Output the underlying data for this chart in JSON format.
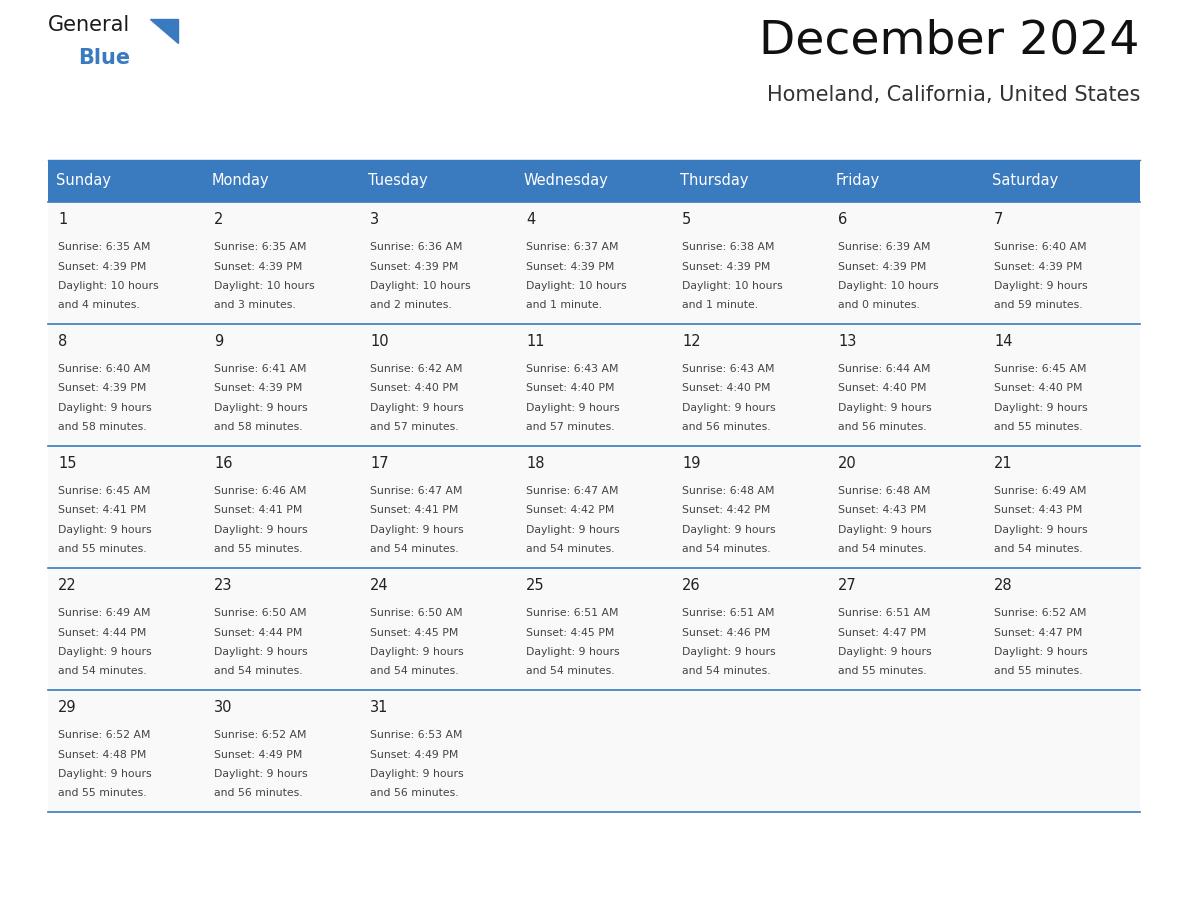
{
  "title": "December 2024",
  "subtitle": "Homeland, California, United States",
  "days_of_week": [
    "Sunday",
    "Monday",
    "Tuesday",
    "Wednesday",
    "Thursday",
    "Friday",
    "Saturday"
  ],
  "header_bg": "#3a7abf",
  "header_text_color": "#ffffff",
  "cell_bg": "#f9f9f9",
  "separator_color": "#3a7abf",
  "text_color": "#444444",
  "day_num_color": "#222222",
  "calendar_data": [
    [
      {
        "day": 1,
        "sunrise": "6:35 AM",
        "sunset": "4:39 PM",
        "daylight_line1": "Daylight: 10 hours",
        "daylight_line2": "and 4 minutes."
      },
      {
        "day": 2,
        "sunrise": "6:35 AM",
        "sunset": "4:39 PM",
        "daylight_line1": "Daylight: 10 hours",
        "daylight_line2": "and 3 minutes."
      },
      {
        "day": 3,
        "sunrise": "6:36 AM",
        "sunset": "4:39 PM",
        "daylight_line1": "Daylight: 10 hours",
        "daylight_line2": "and 2 minutes."
      },
      {
        "day": 4,
        "sunrise": "6:37 AM",
        "sunset": "4:39 PM",
        "daylight_line1": "Daylight: 10 hours",
        "daylight_line2": "and 1 minute."
      },
      {
        "day": 5,
        "sunrise": "6:38 AM",
        "sunset": "4:39 PM",
        "daylight_line1": "Daylight: 10 hours",
        "daylight_line2": "and 1 minute."
      },
      {
        "day": 6,
        "sunrise": "6:39 AM",
        "sunset": "4:39 PM",
        "daylight_line1": "Daylight: 10 hours",
        "daylight_line2": "and 0 minutes."
      },
      {
        "day": 7,
        "sunrise": "6:40 AM",
        "sunset": "4:39 PM",
        "daylight_line1": "Daylight: 9 hours",
        "daylight_line2": "and 59 minutes."
      }
    ],
    [
      {
        "day": 8,
        "sunrise": "6:40 AM",
        "sunset": "4:39 PM",
        "daylight_line1": "Daylight: 9 hours",
        "daylight_line2": "and 58 minutes."
      },
      {
        "day": 9,
        "sunrise": "6:41 AM",
        "sunset": "4:39 PM",
        "daylight_line1": "Daylight: 9 hours",
        "daylight_line2": "and 58 minutes."
      },
      {
        "day": 10,
        "sunrise": "6:42 AM",
        "sunset": "4:40 PM",
        "daylight_line1": "Daylight: 9 hours",
        "daylight_line2": "and 57 minutes."
      },
      {
        "day": 11,
        "sunrise": "6:43 AM",
        "sunset": "4:40 PM",
        "daylight_line1": "Daylight: 9 hours",
        "daylight_line2": "and 57 minutes."
      },
      {
        "day": 12,
        "sunrise": "6:43 AM",
        "sunset": "4:40 PM",
        "daylight_line1": "Daylight: 9 hours",
        "daylight_line2": "and 56 minutes."
      },
      {
        "day": 13,
        "sunrise": "6:44 AM",
        "sunset": "4:40 PM",
        "daylight_line1": "Daylight: 9 hours",
        "daylight_line2": "and 56 minutes."
      },
      {
        "day": 14,
        "sunrise": "6:45 AM",
        "sunset": "4:40 PM",
        "daylight_line1": "Daylight: 9 hours",
        "daylight_line2": "and 55 minutes."
      }
    ],
    [
      {
        "day": 15,
        "sunrise": "6:45 AM",
        "sunset": "4:41 PM",
        "daylight_line1": "Daylight: 9 hours",
        "daylight_line2": "and 55 minutes."
      },
      {
        "day": 16,
        "sunrise": "6:46 AM",
        "sunset": "4:41 PM",
        "daylight_line1": "Daylight: 9 hours",
        "daylight_line2": "and 55 minutes."
      },
      {
        "day": 17,
        "sunrise": "6:47 AM",
        "sunset": "4:41 PM",
        "daylight_line1": "Daylight: 9 hours",
        "daylight_line2": "and 54 minutes."
      },
      {
        "day": 18,
        "sunrise": "6:47 AM",
        "sunset": "4:42 PM",
        "daylight_line1": "Daylight: 9 hours",
        "daylight_line2": "and 54 minutes."
      },
      {
        "day": 19,
        "sunrise": "6:48 AM",
        "sunset": "4:42 PM",
        "daylight_line1": "Daylight: 9 hours",
        "daylight_line2": "and 54 minutes."
      },
      {
        "day": 20,
        "sunrise": "6:48 AM",
        "sunset": "4:43 PM",
        "daylight_line1": "Daylight: 9 hours",
        "daylight_line2": "and 54 minutes."
      },
      {
        "day": 21,
        "sunrise": "6:49 AM",
        "sunset": "4:43 PM",
        "daylight_line1": "Daylight: 9 hours",
        "daylight_line2": "and 54 minutes."
      }
    ],
    [
      {
        "day": 22,
        "sunrise": "6:49 AM",
        "sunset": "4:44 PM",
        "daylight_line1": "Daylight: 9 hours",
        "daylight_line2": "and 54 minutes."
      },
      {
        "day": 23,
        "sunrise": "6:50 AM",
        "sunset": "4:44 PM",
        "daylight_line1": "Daylight: 9 hours",
        "daylight_line2": "and 54 minutes."
      },
      {
        "day": 24,
        "sunrise": "6:50 AM",
        "sunset": "4:45 PM",
        "daylight_line1": "Daylight: 9 hours",
        "daylight_line2": "and 54 minutes."
      },
      {
        "day": 25,
        "sunrise": "6:51 AM",
        "sunset": "4:45 PM",
        "daylight_line1": "Daylight: 9 hours",
        "daylight_line2": "and 54 minutes."
      },
      {
        "day": 26,
        "sunrise": "6:51 AM",
        "sunset": "4:46 PM",
        "daylight_line1": "Daylight: 9 hours",
        "daylight_line2": "and 54 minutes."
      },
      {
        "day": 27,
        "sunrise": "6:51 AM",
        "sunset": "4:47 PM",
        "daylight_line1": "Daylight: 9 hours",
        "daylight_line2": "and 55 minutes."
      },
      {
        "day": 28,
        "sunrise": "6:52 AM",
        "sunset": "4:47 PM",
        "daylight_line1": "Daylight: 9 hours",
        "daylight_line2": "and 55 minutes."
      }
    ],
    [
      {
        "day": 29,
        "sunrise": "6:52 AM",
        "sunset": "4:48 PM",
        "daylight_line1": "Daylight: 9 hours",
        "daylight_line2": "and 55 minutes."
      },
      {
        "day": 30,
        "sunrise": "6:52 AM",
        "sunset": "4:49 PM",
        "daylight_line1": "Daylight: 9 hours",
        "daylight_line2": "and 56 minutes."
      },
      {
        "day": 31,
        "sunrise": "6:53 AM",
        "sunset": "4:49 PM",
        "daylight_line1": "Daylight: 9 hours",
        "daylight_line2": "and 56 minutes."
      },
      null,
      null,
      null,
      null
    ]
  ],
  "logo_text1": "General",
  "logo_text2": "Blue",
  "logo_color1": "#1a1a1a",
  "logo_color2": "#3a7abf",
  "title_fontsize": 34,
  "subtitle_fontsize": 15
}
